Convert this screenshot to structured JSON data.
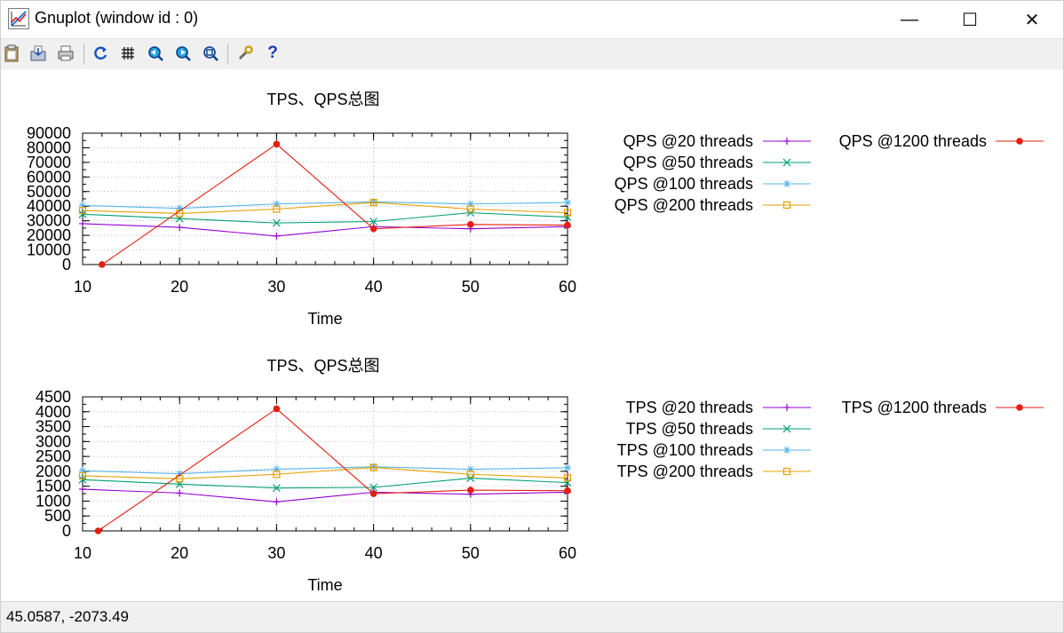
{
  "window": {
    "title": "Gnuplot (window id : 0)",
    "minimize_glyph": "—",
    "maximize_glyph": "☐",
    "close_glyph": "✕"
  },
  "toolbar": {
    "buttons": [
      {
        "name": "copy-clipboard-icon"
      },
      {
        "name": "save-icon"
      },
      {
        "name": "print-icon"
      },
      {
        "name": "replot-icon"
      },
      {
        "name": "grid-icon"
      },
      {
        "name": "zoom-previous-icon"
      },
      {
        "name": "zoom-next-icon"
      },
      {
        "name": "unzoom-icon"
      },
      {
        "name": "options-icon"
      },
      {
        "name": "help-icon",
        "label": "?"
      }
    ]
  },
  "status": {
    "coordinates": "45.0587, -2073.49"
  },
  "chart_data": [
    {
      "type": "line",
      "title": "TPS、QPS总图",
      "xlabel": "Time",
      "ylabel": "",
      "xlim": [
        10,
        60
      ],
      "ylim": [
        0,
        90000
      ],
      "xticks": [
        10,
        20,
        30,
        40,
        50,
        60
      ],
      "yticks": [
        0,
        10000,
        20000,
        30000,
        40000,
        50000,
        60000,
        70000,
        80000,
        90000
      ],
      "grid": true,
      "legend_position": "right",
      "series": [
        {
          "name": "QPS @20  threads",
          "color": "#9400d3",
          "marker": "plus",
          "x": [
            10,
            20,
            30,
            40,
            50,
            60
          ],
          "y": [
            28000,
            25500,
            19500,
            26000,
            24500,
            26000
          ]
        },
        {
          "name": "QPS @50  threads",
          "color": "#009e73",
          "marker": "cross",
          "x": [
            10,
            20,
            30,
            40,
            50,
            60
          ],
          "y": [
            34500,
            31500,
            28500,
            29500,
            35500,
            32500
          ]
        },
        {
          "name": "QPS @100 threads",
          "color": "#56b4e9",
          "marker": "star",
          "x": [
            10,
            20,
            30,
            40,
            50,
            60
          ],
          "y": [
            40500,
            38500,
            41500,
            43000,
            41500,
            42500
          ]
        },
        {
          "name": "QPS @200 threads",
          "color": "#e69f00",
          "marker": "box",
          "x": [
            10,
            20,
            30,
            40,
            50,
            60
          ],
          "y": [
            37000,
            35000,
            38000,
            42500,
            38000,
            35500
          ]
        },
        {
          "name": "QPS @1200 threads",
          "color": "#e51e10",
          "marker": "dot",
          "x": [
            12,
            30,
            40,
            50,
            60
          ],
          "y": [
            0,
            82500,
            24500,
            27500,
            27000
          ]
        }
      ]
    },
    {
      "type": "line",
      "title": "TPS、QPS总图",
      "xlabel": "Time",
      "ylabel": "",
      "xlim": [
        10,
        60
      ],
      "ylim": [
        0,
        4500
      ],
      "xticks": [
        10,
        20,
        30,
        40,
        50,
        60
      ],
      "yticks": [
        0,
        500,
        1000,
        1500,
        2000,
        2500,
        3000,
        3500,
        4000,
        4500
      ],
      "grid": true,
      "legend_position": "right",
      "series": [
        {
          "name": "TPS @20  threads",
          "color": "#9400d3",
          "marker": "plus",
          "x": [
            10,
            20,
            30,
            40,
            50,
            60
          ],
          "y": [
            1400,
            1270,
            975,
            1300,
            1230,
            1300
          ]
        },
        {
          "name": "TPS @50  threads",
          "color": "#009e73",
          "marker": "cross",
          "x": [
            10,
            20,
            30,
            40,
            50,
            60
          ],
          "y": [
            1720,
            1570,
            1440,
            1460,
            1770,
            1620
          ]
        },
        {
          "name": "TPS @100 threads",
          "color": "#56b4e9",
          "marker": "star",
          "x": [
            10,
            20,
            30,
            40,
            50,
            60
          ],
          "y": [
            2020,
            1920,
            2070,
            2150,
            2070,
            2120
          ]
        },
        {
          "name": "TPS @200 threads",
          "color": "#e69f00",
          "marker": "box",
          "x": [
            10,
            20,
            30,
            40,
            50,
            60
          ],
          "y": [
            1850,
            1750,
            1900,
            2130,
            1900,
            1780
          ]
        },
        {
          "name": "TPS @1200 threads",
          "color": "#e51e10",
          "marker": "dot",
          "x": [
            11.6,
            30,
            40,
            50,
            60
          ],
          "y": [
            0,
            4100,
            1250,
            1370,
            1350
          ]
        }
      ]
    }
  ]
}
